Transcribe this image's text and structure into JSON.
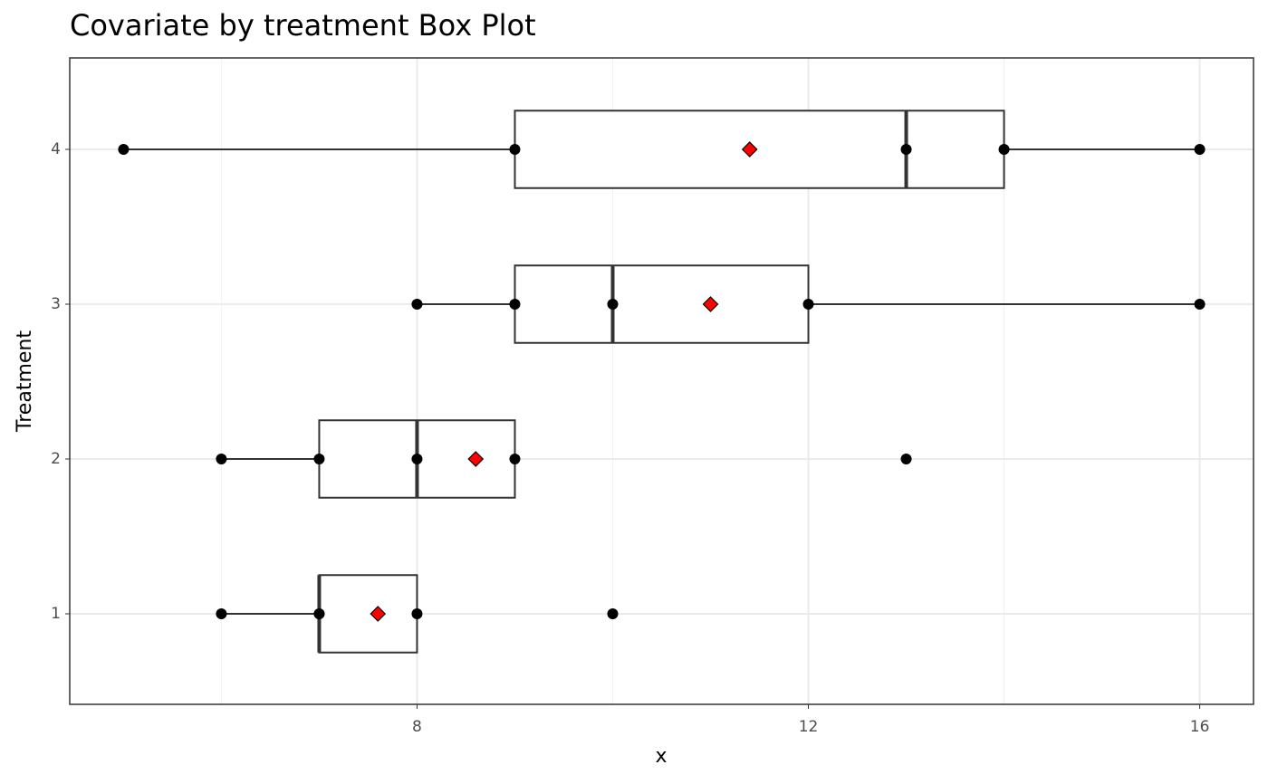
{
  "chart_data": {
    "type": "boxplot",
    "orientation": "horizontal",
    "title": "Covariate by treatment Box Plot",
    "x_label": "x",
    "y_label": "Treatment",
    "categories": [
      "1",
      "2",
      "3",
      "4"
    ],
    "series": [
      {
        "whisker_low": 6,
        "q1": 7,
        "median": 7,
        "q3": 8,
        "whisker_high": 8,
        "mean": 7.6,
        "points": [
          6,
          7,
          7,
          8,
          10
        ]
      },
      {
        "whisker_low": 6,
        "q1": 7,
        "median": 8,
        "q3": 9,
        "whisker_high": 9,
        "mean": 8.6,
        "points": [
          6,
          7,
          8,
          9,
          13
        ]
      },
      {
        "whisker_low": 8,
        "q1": 9,
        "median": 10,
        "q3": 12,
        "whisker_high": 16,
        "mean": 11,
        "points": [
          8,
          9,
          10,
          12,
          16
        ]
      },
      {
        "whisker_low": 5,
        "q1": 9,
        "median": 13,
        "q3": 14,
        "whisker_high": 16,
        "mean": 11.4,
        "points": [
          5,
          9,
          13,
          14,
          16
        ]
      }
    ],
    "mean_color": "#ff0000",
    "point_color": "#000000",
    "xlim": [
      4.45,
      16.55
    ],
    "xticks": [
      8,
      12,
      16
    ],
    "x_minor_grid": [
      6,
      10,
      14
    ],
    "grid": true
  }
}
